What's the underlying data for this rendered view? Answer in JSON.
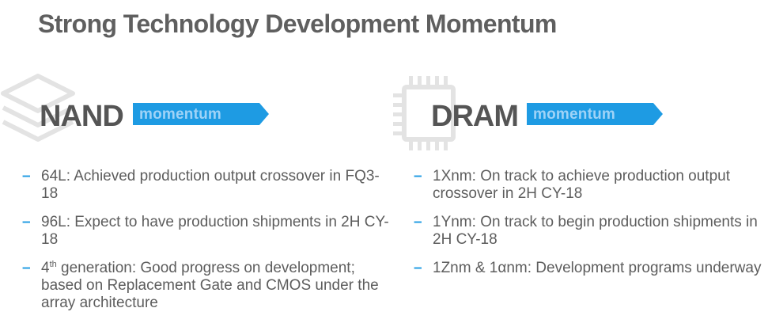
{
  "slide": {
    "title": "Strong Technology Development Momentum"
  },
  "nand": {
    "heading": "NAND",
    "tag": "momentum",
    "icon": "layers-icon",
    "bullets": [
      {
        "text": "64L: Achieved production output crossover in FQ3-18"
      },
      {
        "text": "96L: Expect to have production shipments in 2H CY-18"
      },
      {
        "prefix": "4",
        "sup": "th",
        "text": " generation: Good progress on development; based on Replacement Gate and CMOS under the array architecture"
      }
    ]
  },
  "dram": {
    "heading": "DRAM",
    "tag": "momentum",
    "icon": "chip-icon",
    "bullets": [
      {
        "text": "1Xnm: On track to achieve production output crossover in 2H CY-18"
      },
      {
        "text": "1Ynm: On track to begin production shipments in 2H CY-18"
      },
      {
        "text": "1Znm & 1αnm: Development programs underway"
      }
    ]
  },
  "colors": {
    "accent": "#1e9be3",
    "tag_text": "#9fd3f7",
    "heading": "#555555",
    "body": "#5d5d5d",
    "icon": "#e3e3e3"
  }
}
